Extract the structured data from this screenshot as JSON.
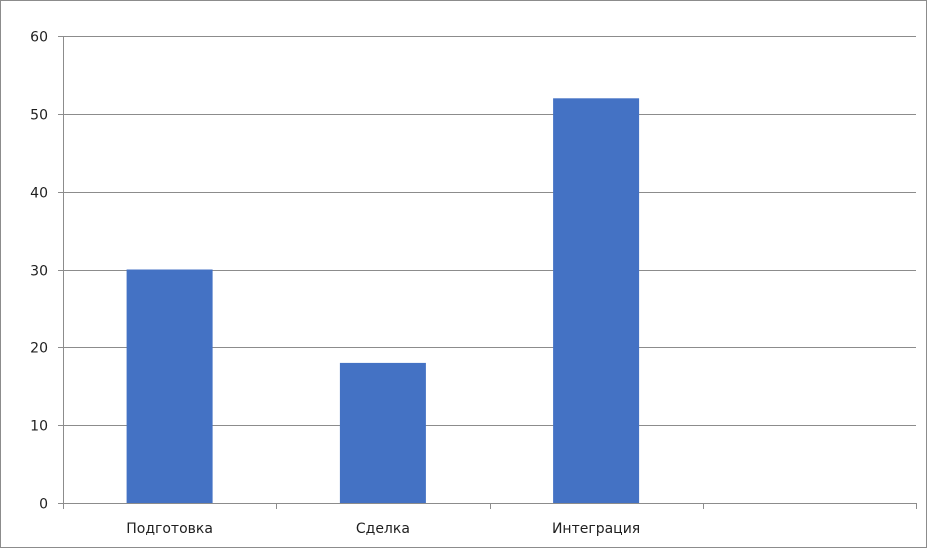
{
  "chart_data": {
    "type": "bar",
    "title": "",
    "xlabel": "",
    "ylabel": "",
    "categories": [
      "Подготовка",
      "Сделка",
      "Интеграция",
      ""
    ],
    "values": [
      30,
      18,
      52,
      null
    ],
    "ylim": [
      0,
      60
    ],
    "yticks": [
      0,
      10,
      20,
      30,
      40,
      50,
      60
    ],
    "grid": true,
    "legend": "none",
    "bar_color": "#4472C4",
    "grid_color": "#8C8C8C",
    "axis_color": "#8C8C8C"
  }
}
